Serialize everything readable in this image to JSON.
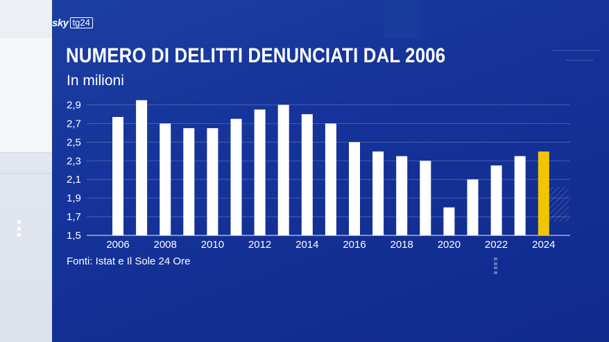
{
  "brand": {
    "sky": "sky",
    "channel": "tg24"
  },
  "header": {
    "title": "NUMERO DI DELITTI DENUNCIATI DAL 2006",
    "subtitle": "In milioni"
  },
  "footer": {
    "source": "Fonti: Istat e Il Sole 24 Ore"
  },
  "colors": {
    "background": "#15339a",
    "bar": "#ffffff",
    "highlight": "#f2c500",
    "text": "#ffffff"
  },
  "chart_data": {
    "type": "bar",
    "categories": [
      "2006",
      "2007",
      "2008",
      "2009",
      "2010",
      "2011",
      "2012",
      "2013",
      "2014",
      "2015",
      "2016",
      "2017",
      "2018",
      "2019",
      "2020",
      "2021",
      "2022",
      "2023",
      "2024"
    ],
    "values": [
      2.77,
      2.95,
      2.7,
      2.65,
      2.65,
      2.75,
      2.85,
      2.9,
      2.8,
      2.7,
      2.5,
      2.4,
      2.35,
      2.3,
      1.8,
      2.1,
      2.25,
      2.35,
      2.4
    ],
    "highlight_category": "2024",
    "x_tick_labels": [
      "2006",
      "2008",
      "2010",
      "2012",
      "2014",
      "2016",
      "2018",
      "2020",
      "2022",
      "2024"
    ],
    "y_tick_labels": [
      "1,5",
      "1,7",
      "1,9",
      "2,1",
      "2,3",
      "2,5",
      "2,7",
      "2,9"
    ],
    "y_ticks": [
      1.5,
      1.7,
      1.9,
      2.1,
      2.3,
      2.5,
      2.7,
      2.9
    ],
    "ylim": [
      1.5,
      3.0
    ],
    "grid": true
  }
}
